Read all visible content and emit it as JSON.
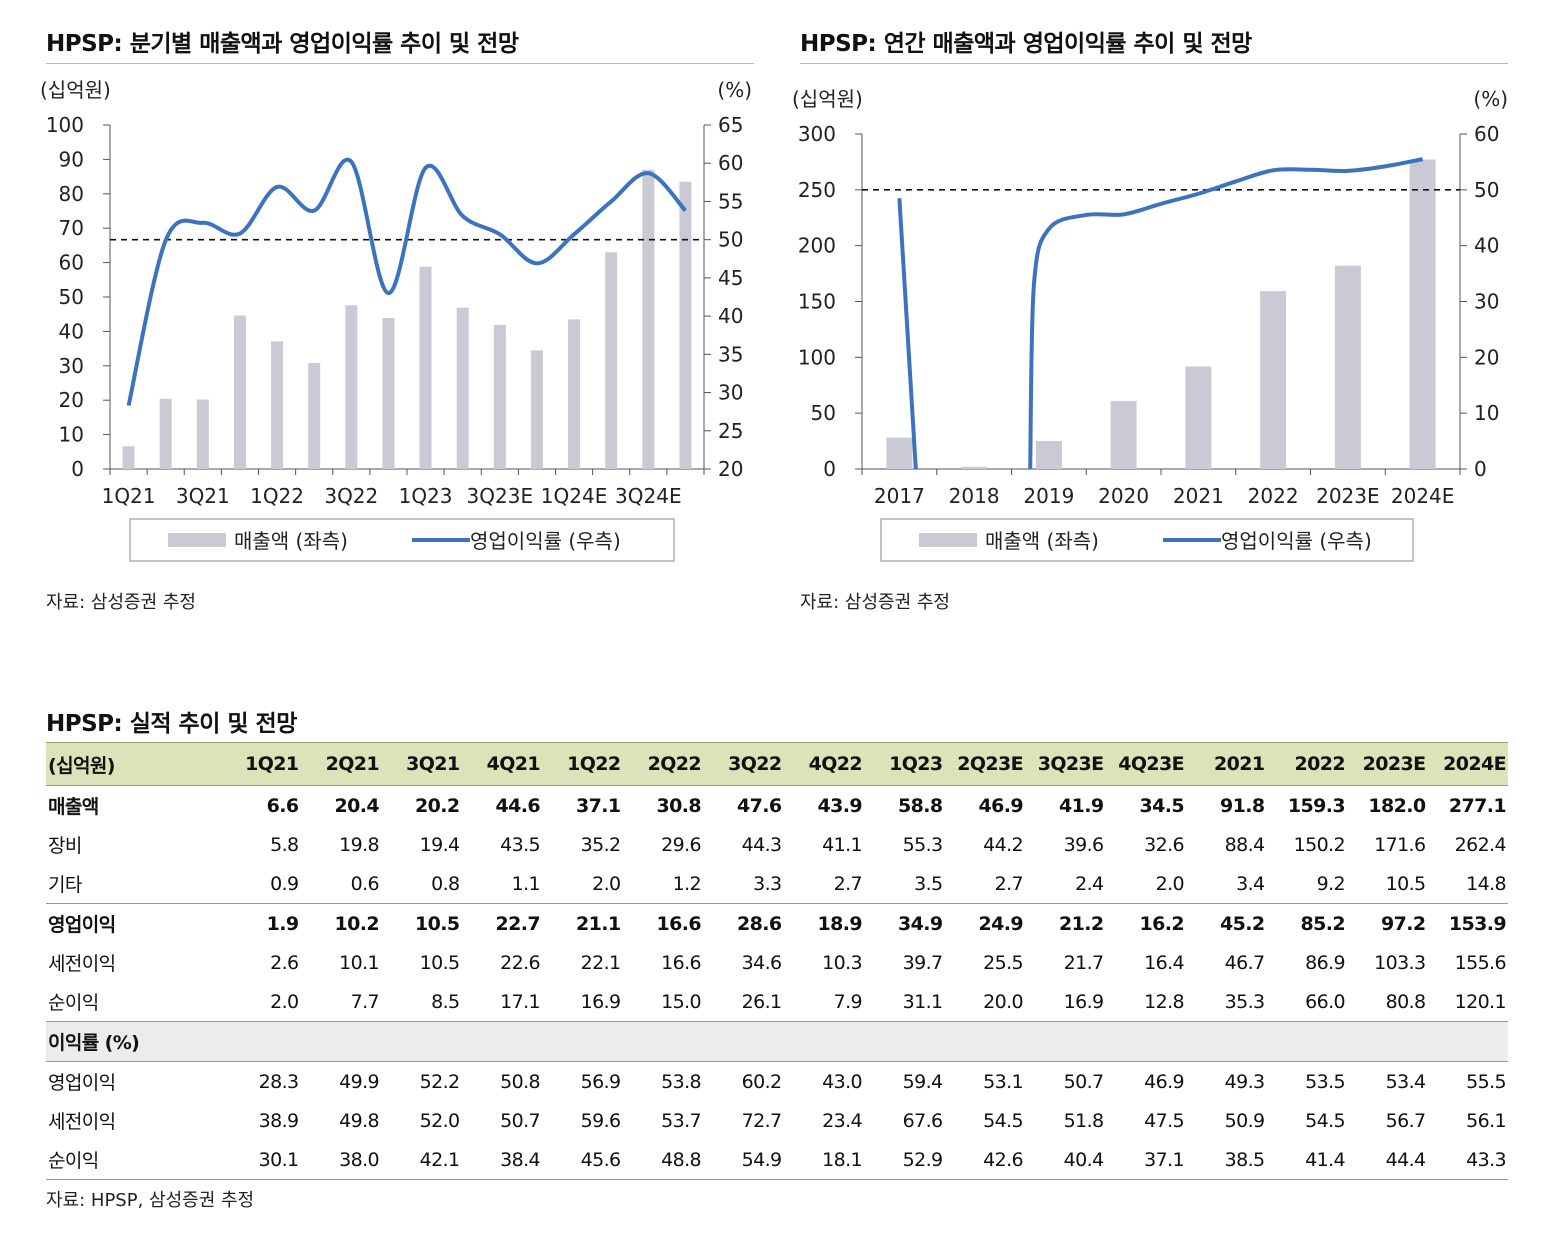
{
  "chart_data": [
    {
      "type": "bar+line",
      "title": "HPSP: 분기별 매출액과 영업이익률 추이 및 전망",
      "ylabel_left": "(십억원)",
      "ylabel_right": "(%)",
      "ylim_left": [
        0,
        100
      ],
      "ylim_right": [
        20,
        65
      ],
      "yticks_left": [
        "0",
        "10",
        "20",
        "30",
        "40",
        "50",
        "60",
        "70",
        "80",
        "90",
        "100"
      ],
      "yticks_right": [
        "20",
        "25",
        "30",
        "35",
        "40",
        "45",
        "50",
        "55",
        "60",
        "65"
      ],
      "categories": [
        "1Q21",
        "2Q21",
        "3Q21",
        "4Q21",
        "1Q22",
        "2Q22",
        "3Q22",
        "4Q22",
        "1Q23",
        "2Q23E",
        "3Q23E",
        "4Q23E",
        "1Q24E",
        "2Q24E",
        "3Q24E",
        "4Q24E"
      ],
      "xtick_labels": [
        "1Q21",
        "3Q21",
        "1Q22",
        "3Q22",
        "1Q23",
        "3Q23E",
        "1Q24E",
        "3Q24E"
      ],
      "series": [
        {
          "name": "매출액 (좌측)",
          "kind": "bar",
          "axis": "left",
          "color": "#c9cad3",
          "values": [
            6.6,
            20.4,
            20.2,
            44.6,
            37.1,
            30.8,
            47.6,
            43.9,
            58.8,
            46.9,
            41.9,
            34.5,
            43.5,
            63.0,
            87.0,
            83.5
          ]
        },
        {
          "name": "영업이익률 (우측)",
          "kind": "line",
          "axis": "right",
          "color": "#3b73c0",
          "values": [
            28.3,
            49.9,
            52.2,
            50.8,
            56.9,
            53.8,
            60.2,
            43.0,
            59.4,
            53.1,
            50.7,
            46.9,
            50.7,
            55.0,
            58.7,
            53.8
          ]
        }
      ],
      "reference_line": {
        "axis": "right",
        "value": 50,
        "style": "dashed"
      },
      "legend": [
        "매출액 (좌측)",
        "영업이익률 (우측)"
      ],
      "legend_position": "bottom"
    },
    {
      "type": "bar+line",
      "title": "HPSP: 연간 매출액과 영업이익률 추이 및 전망",
      "ylabel_left": "(십억원)",
      "ylabel_right": "(%)",
      "ylim_left": [
        0,
        300
      ],
      "ylim_right": [
        0,
        60
      ],
      "yticks_left": [
        "0",
        "50",
        "100",
        "150",
        "200",
        "250",
        "300"
      ],
      "yticks_right": [
        "0",
        "10",
        "20",
        "30",
        "40",
        "50",
        "60"
      ],
      "categories": [
        "2017",
        "2018",
        "2019",
        "2020",
        "2021",
        "2022",
        "2023E",
        "2024E"
      ],
      "xtick_labels": [
        "2017",
        "2018",
        "2019",
        "2020",
        "2021",
        "2022",
        "2023E",
        "2024E"
      ],
      "series": [
        {
          "name": "매출액 (좌측)",
          "kind": "bar",
          "axis": "left",
          "color": "#c9cad3",
          "values": [
            28,
            2,
            25,
            61,
            91.8,
            159.3,
            182.0,
            277.1
          ]
        },
        {
          "name": "영업이익률 (우측)",
          "kind": "line",
          "axis": "right",
          "color": "#3b73c0",
          "segments": [
            [
              [
                0.0,
                48.5
              ],
              [
                0.22,
                0
              ]
            ],
            [
              [
                1.75,
                0
              ],
              [
                1.8,
                33
              ],
              [
                2.0,
                43
              ],
              [
                2.5,
                45.5
              ],
              [
                3.0,
                45.6
              ],
              [
                3.5,
                47.5
              ],
              [
                4.0,
                49.3
              ],
              [
                4.5,
                51.5
              ],
              [
                5.0,
                53.5
              ],
              [
                5.5,
                53.6
              ],
              [
                6.0,
                53.4
              ],
              [
                6.5,
                54.2
              ],
              [
                7.0,
                55.5
              ]
            ]
          ]
        }
      ],
      "reference_line": {
        "axis": "right",
        "value": 50,
        "style": "dashed"
      },
      "legend": [
        "매출액 (좌측)",
        "영업이익률 (우측)"
      ],
      "legend_position": "bottom"
    }
  ],
  "sources": {
    "chart1": "자료: 삼성증권 추정",
    "chart2": "자료: 삼성증권 추정",
    "table": "자료: HPSP, 삼성증권 추정"
  },
  "table": {
    "title": "HPSP: 실적 추이 및 전망",
    "columns": [
      "(십억원)",
      "1Q21",
      "2Q21",
      "3Q21",
      "4Q21",
      "1Q22",
      "2Q22",
      "3Q22",
      "4Q22",
      "1Q23",
      "2Q23E",
      "3Q23E",
      "4Q23E",
      "2021",
      "2022",
      "2023E",
      "2024E"
    ],
    "rows": [
      {
        "style": "bold",
        "label": "매출액",
        "values": [
          "6.6",
          "20.4",
          "20.2",
          "44.6",
          "37.1",
          "30.8",
          "47.6",
          "43.9",
          "58.8",
          "46.9",
          "41.9",
          "34.5",
          "91.8",
          "159.3",
          "182.0",
          "277.1"
        ]
      },
      {
        "style": "",
        "label": "장비",
        "values": [
          "5.8",
          "19.8",
          "19.4",
          "43.5",
          "35.2",
          "29.6",
          "44.3",
          "41.1",
          "55.3",
          "44.2",
          "39.6",
          "32.6",
          "88.4",
          "150.2",
          "171.6",
          "262.4"
        ]
      },
      {
        "style": "",
        "label": "기타",
        "values": [
          "0.9",
          "0.6",
          "0.8",
          "1.1",
          "2.0",
          "1.2",
          "3.3",
          "2.7",
          "3.5",
          "2.7",
          "2.4",
          "2.0",
          "3.4",
          "9.2",
          "10.5",
          "14.8"
        ]
      },
      {
        "style": "bold sep",
        "label": "영업이익",
        "values": [
          "1.9",
          "10.2",
          "10.5",
          "22.7",
          "21.1",
          "16.6",
          "28.6",
          "18.9",
          "34.9",
          "24.9",
          "21.2",
          "16.2",
          "45.2",
          "85.2",
          "97.2",
          "153.9"
        ]
      },
      {
        "style": "",
        "label": "세전이익",
        "values": [
          "2.6",
          "10.1",
          "10.5",
          "22.6",
          "22.1",
          "16.6",
          "34.6",
          "10.3",
          "39.7",
          "25.5",
          "21.7",
          "16.4",
          "46.7",
          "86.9",
          "103.3",
          "155.6"
        ]
      },
      {
        "style": "",
        "label": "순이익",
        "values": [
          "2.0",
          "7.7",
          "8.5",
          "17.1",
          "16.9",
          "15.0",
          "26.1",
          "7.9",
          "31.1",
          "20.0",
          "16.9",
          "12.8",
          "35.3",
          "66.0",
          "80.8",
          "120.1"
        ]
      },
      {
        "style": "section",
        "label": "이익률 (%)",
        "values": [
          "",
          "",
          "",
          "",
          "",
          "",
          "",
          "",
          "",
          "",
          "",
          "",
          "",
          "",
          "",
          ""
        ]
      },
      {
        "style": "",
        "label": "영업이익",
        "values": [
          "28.3",
          "49.9",
          "52.2",
          "50.8",
          "56.9",
          "53.8",
          "60.2",
          "43.0",
          "59.4",
          "53.1",
          "50.7",
          "46.9",
          "49.3",
          "53.5",
          "53.4",
          "55.5"
        ]
      },
      {
        "style": "",
        "label": "세전이익",
        "values": [
          "38.9",
          "49.8",
          "52.0",
          "50.7",
          "59.6",
          "53.7",
          "72.7",
          "23.4",
          "67.6",
          "54.5",
          "51.8",
          "47.5",
          "50.9",
          "54.5",
          "56.7",
          "56.1"
        ]
      },
      {
        "style": "",
        "label": "순이익",
        "values": [
          "30.1",
          "38.0",
          "42.1",
          "38.4",
          "45.6",
          "48.8",
          "54.9",
          "18.1",
          "52.9",
          "42.6",
          "40.4",
          "37.1",
          "38.5",
          "41.4",
          "44.4",
          "43.3"
        ]
      }
    ]
  }
}
